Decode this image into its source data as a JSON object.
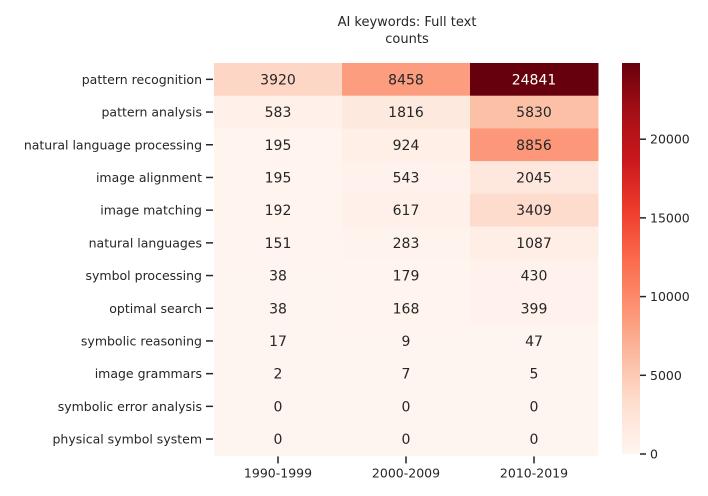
{
  "chart_data": {
    "type": "heatmap",
    "title_lines": [
      "AI keywords: Full text",
      "counts"
    ],
    "rows": [
      "pattern recognition",
      "pattern analysis",
      "natural language processing",
      "image alignment",
      "image matching",
      "natural languages",
      "symbol processing",
      "optimal search",
      "symbolic reasoning",
      "image grammars",
      "symbolic error analysis",
      "physical symbol system"
    ],
    "columns": [
      "1990-1999",
      "2000-2009",
      "2010-2019"
    ],
    "values": [
      [
        3920,
        8458,
        24841
      ],
      [
        583,
        1816,
        5830
      ],
      [
        195,
        924,
        8856
      ],
      [
        195,
        543,
        2045
      ],
      [
        192,
        617,
        3409
      ],
      [
        151,
        283,
        1087
      ],
      [
        38,
        179,
        430
      ],
      [
        38,
        168,
        399
      ],
      [
        17,
        9,
        47
      ],
      [
        2,
        7,
        5
      ],
      [
        0,
        0,
        0
      ],
      [
        0,
        0,
        0
      ]
    ],
    "colormap": "Reds",
    "vmin": 0,
    "vmax": 24841,
    "colorbar_ticks": [
      0,
      5000,
      10000,
      15000,
      20000
    ]
  }
}
